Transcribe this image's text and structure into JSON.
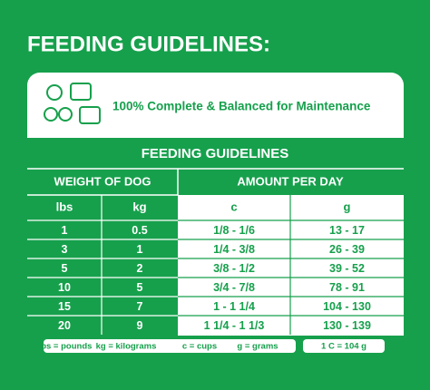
{
  "header": {
    "title": "FEEDING GUIDELINES:"
  },
  "banner": {
    "text": "100% Complete & Balanced for Maintenance"
  },
  "table": {
    "title": "FEEDING GUIDELINES",
    "group_headers": [
      "WEIGHT OF DOG",
      "AMOUNT PER DAY"
    ],
    "columns": [
      "lbs",
      "kg",
      "c",
      "g"
    ],
    "rows": [
      [
        "1",
        "0.5",
        "1/8 - 1/6",
        "13 - 17"
      ],
      [
        "3",
        "1",
        "1/4 - 3/8",
        "26 - 39"
      ],
      [
        "5",
        "2",
        "3/8 - 1/2",
        "39 - 52"
      ],
      [
        "10",
        "5",
        "3/4 - 7/8",
        "78 - 91"
      ],
      [
        "15",
        "7",
        "1 - 1 1/4",
        "104 - 130"
      ],
      [
        "20",
        "9",
        "1 1/4 - 1 1/3",
        "130 - 139"
      ]
    ]
  },
  "footer": {
    "notes": [
      "lbs = pounds",
      "kg = kilograms",
      "c = cups",
      "g = grams"
    ],
    "conversion": "1 C = 104 g"
  }
}
